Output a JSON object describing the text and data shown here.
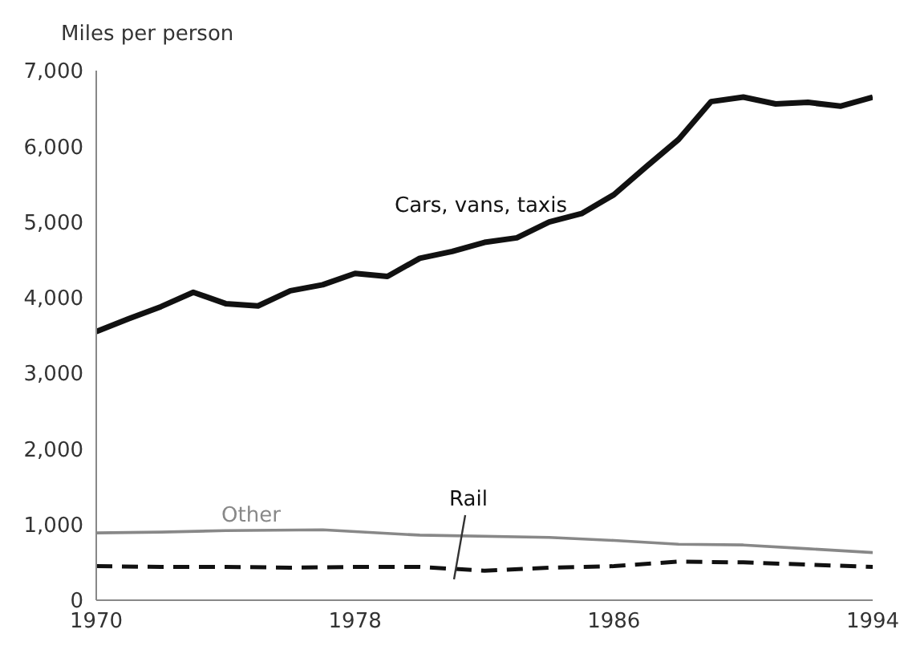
{
  "chart_data": {
    "type": "line",
    "ylabel": "Miles per person",
    "legend": false,
    "grid": false,
    "marker": "none",
    "xlim": [
      1970,
      1994
    ],
    "xticks": [
      1970,
      1978,
      1986,
      1994
    ],
    "ylim": [
      0,
      7000
    ],
    "yticks": [
      0,
      {
        "value": 1000,
        "label": "1,000"
      },
      {
        "value": 2000,
        "label": "2,000"
      },
      {
        "value": 3000,
        "label": "3,000"
      },
      {
        "value": 4000,
        "label": "4,000"
      },
      {
        "value": 5000,
        "label": "5,000"
      },
      {
        "value": 6000,
        "label": "6,000"
      },
      {
        "value": 7000,
        "label": "7,000"
      }
    ],
    "series": [
      {
        "name": "Cars, vans, taxis",
        "color": "#111111",
        "line_style": "solid",
        "x": [
          1970,
          1971,
          1972,
          1973,
          1974,
          1975,
          1976,
          1977,
          1978,
          1979,
          1980,
          1981,
          1982,
          1983,
          1984,
          1985,
          1986,
          1987,
          1988,
          1989,
          1990,
          1991,
          1992,
          1993,
          1994
        ],
        "values": [
          3550,
          3720,
          3880,
          4070,
          3920,
          3890,
          4090,
          4170,
          4320,
          4280,
          4520,
          4610,
          4730,
          4790,
          5000,
          5110,
          5360,
          5730,
          6090,
          6590,
          6650,
          6560,
          6580,
          6530,
          6650
        ]
      },
      {
        "name": "Other",
        "color": "#888888",
        "line_style": "solid",
        "x": [
          1970,
          1972,
          1974,
          1977,
          1980,
          1984,
          1986,
          1988,
          1990,
          1992,
          1994
        ],
        "values": [
          890,
          900,
          920,
          930,
          860,
          830,
          790,
          740,
          730,
          680,
          630
        ]
      },
      {
        "name": "Rail",
        "color": "#111111",
        "line_style": "dashed",
        "x": [
          1970,
          1972,
          1974,
          1976,
          1978,
          1980,
          1982,
          1984,
          1986,
          1988,
          1990,
          1992,
          1994
        ],
        "values": [
          450,
          440,
          440,
          430,
          440,
          440,
          390,
          430,
          450,
          510,
          500,
          470,
          440
        ]
      }
    ]
  }
}
